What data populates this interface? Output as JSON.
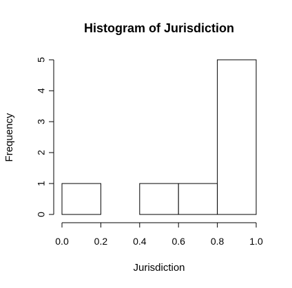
{
  "chart_data": {
    "type": "bar",
    "title": "Histogram of Jurisdiction",
    "xlabel": "Jurisdiction",
    "ylabel": "Frequency",
    "bins": [
      {
        "from": 0.0,
        "to": 0.2,
        "count": 1
      },
      {
        "from": 0.2,
        "to": 0.4,
        "count": 0
      },
      {
        "from": 0.4,
        "to": 0.6,
        "count": 1
      },
      {
        "from": 0.6,
        "to": 0.8,
        "count": 1
      },
      {
        "from": 0.8,
        "to": 1.0,
        "count": 5
      }
    ],
    "xlim": [
      0,
      1
    ],
    "ylim": [
      0,
      5
    ],
    "x_ticks": [
      "0.0",
      "0.2",
      "0.4",
      "0.6",
      "0.8",
      "1.0"
    ],
    "y_ticks": [
      "0",
      "1",
      "2",
      "3",
      "4",
      "5"
    ],
    "grid": false,
    "colors": {
      "bar_fill": "#ffffff",
      "bar_stroke": "#000000"
    }
  }
}
